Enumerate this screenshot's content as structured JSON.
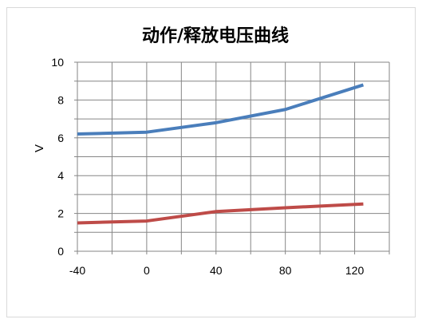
{
  "chart_data": {
    "type": "line",
    "title": "动作/释放电压曲线",
    "xlabel": "",
    "ylabel": "V",
    "x": [
      -40,
      0,
      40,
      80,
      125
    ],
    "x_ticks": [
      "-40",
      "0",
      "40",
      "80",
      "120"
    ],
    "y_ticks": [
      "0",
      "2",
      "4",
      "6",
      "8",
      "10"
    ],
    "xlim": [
      -40,
      140
    ],
    "ylim": [
      0,
      10
    ],
    "grid": true,
    "legend": "none",
    "series": [
      {
        "color": "#4a7ebb",
        "values": [
          6.2,
          6.3,
          6.8,
          7.5,
          8.8
        ]
      },
      {
        "color": "#be4b48",
        "values": [
          1.5,
          1.6,
          2.1,
          2.3,
          2.5
        ]
      }
    ]
  }
}
